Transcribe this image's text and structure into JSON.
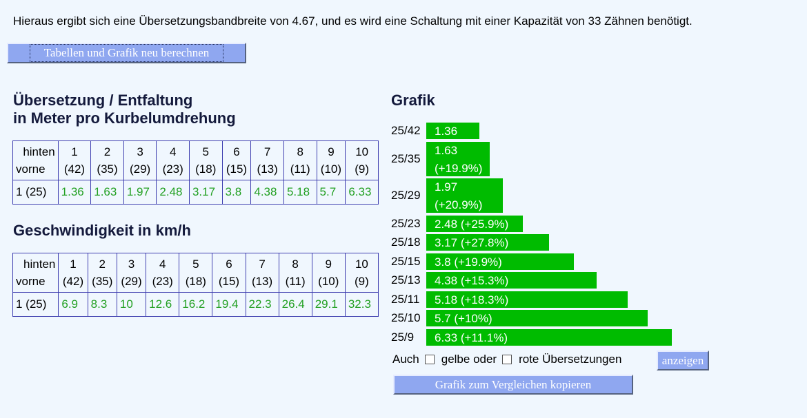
{
  "summary": "Hieraus ergibt sich eine Übersetzungsbandbreite von 4.67, und es wird eine Schaltung mit einer Kapazität von 33 Zähnen benötigt.",
  "buttons": {
    "recalc": "Tabellen und Grafik neu berechnen",
    "show": "anzeigen",
    "copy": "Grafik zum Vergleichen kopieren"
  },
  "ueb": {
    "title1": "Übersetzung / Entfaltung",
    "title2": "in Meter pro Kurbelumdrehung",
    "hinten": "hinten",
    "vorne": "vorne",
    "cols": [
      "1",
      "2",
      "3",
      "4",
      "5",
      "6",
      "7",
      "8",
      "9",
      "10"
    ],
    "teeth": [
      "(42)",
      "(35)",
      "(29)",
      "(23)",
      "(18)",
      "(15)",
      "(13)",
      "(11)",
      "(10)",
      "(9)"
    ],
    "row_label": "1 (25)",
    "values": [
      "1.36",
      "1.63",
      "1.97",
      "2.48",
      "3.17",
      "3.8",
      "4.38",
      "5.18",
      "5.7",
      "6.33"
    ]
  },
  "gesch": {
    "title": "Geschwindigkeit in km/h",
    "hinten": "hinten",
    "vorne": "vorne",
    "cols": [
      "1",
      "2",
      "3",
      "4",
      "5",
      "6",
      "7",
      "8",
      "9",
      "10"
    ],
    "teeth": [
      "(42)",
      "(35)",
      "(29)",
      "(23)",
      "(18)",
      "(15)",
      "(13)",
      "(11)",
      "(10)",
      "(9)"
    ],
    "row_label": "1 (25)",
    "values": [
      "6.9",
      "8.3",
      "10",
      "12.6",
      "16.2",
      "19.4",
      "22.3",
      "26.4",
      "29.1",
      "32.3"
    ]
  },
  "grafik": {
    "title": "Grafik",
    "bar_color": "#00bb00"
  },
  "chart_data": {
    "type": "bar",
    "categories": [
      "25/42",
      "25/35",
      "25/29",
      "25/23",
      "25/18",
      "25/15",
      "25/13",
      "25/11",
      "25/10",
      "25/9"
    ],
    "values": [
      1.36,
      1.63,
      1.97,
      2.48,
      3.17,
      3.8,
      4.38,
      5.18,
      5.7,
      6.33
    ],
    "bar_labels": [
      "1.36",
      "1.63",
      "1.97",
      "2.48",
      "3.17",
      "3.8",
      "4.38",
      "5.18",
      "5.7",
      "6.33"
    ],
    "changes": [
      "",
      "(+19.9%)",
      "(+20.9%)",
      "(+25.9%)",
      "(+27.8%)",
      "(+19.9%)",
      "(+15.3%)",
      "(+18.3%)",
      "(+10%)",
      "(+11.1%)"
    ]
  },
  "aux": {
    "auch": "Auch",
    "gelbe": "gelbe oder",
    "rote": "rote Übersetzungen"
  }
}
